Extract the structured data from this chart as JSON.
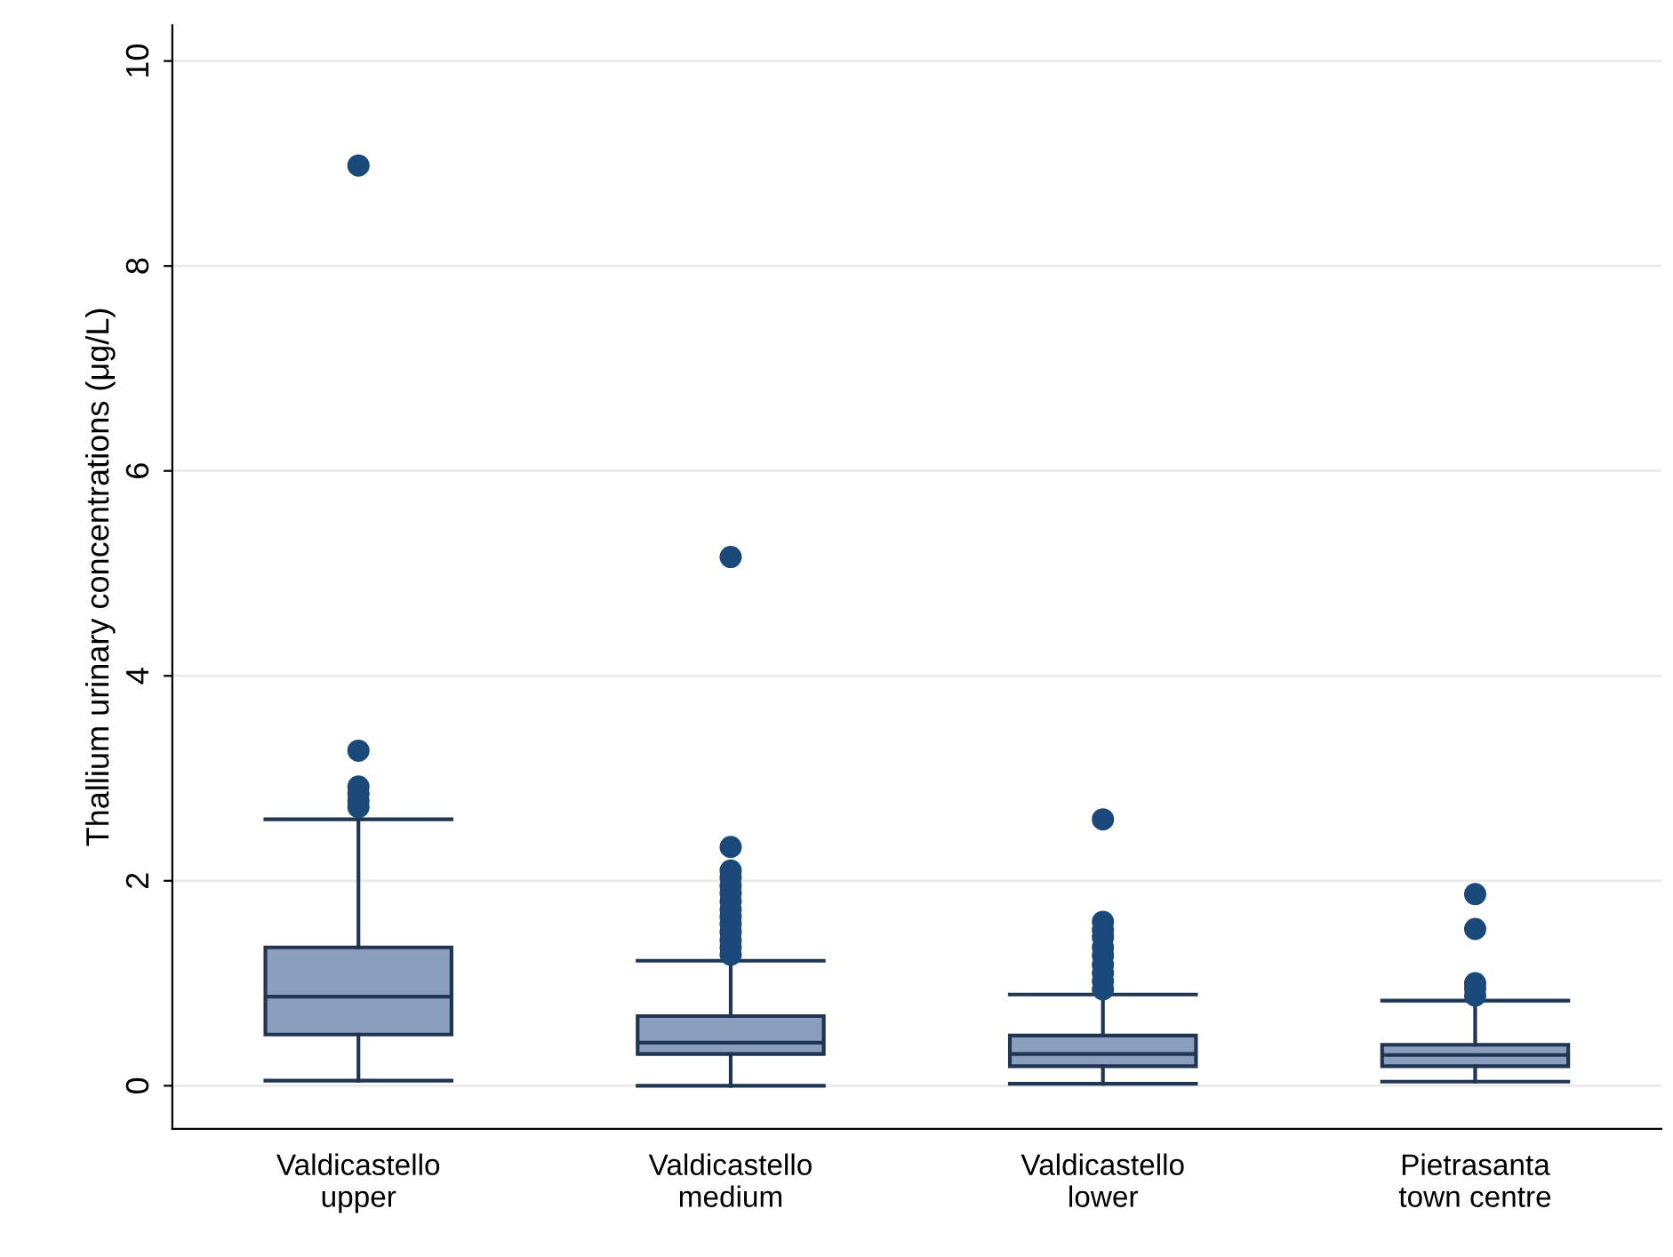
{
  "chart_data": {
    "type": "box",
    "ylabel": "Thallium urinary concentrations (μg/L)",
    "categories": [
      "Valdicastello\nupper",
      "Valdicastello\nmedium",
      "Valdicastello\nlower",
      "Pietrasanta\ntown centre"
    ],
    "boxes": [
      {
        "low": 0.05,
        "q1": 0.5,
        "median": 0.87,
        "q3": 1.35,
        "high": 2.6,
        "outliers": [
          2.72,
          2.78,
          2.85,
          2.92,
          3.27,
          8.98
        ]
      },
      {
        "low": 0.0,
        "q1": 0.31,
        "median": 0.42,
        "q3": 0.68,
        "high": 1.22,
        "outliers": [
          1.28,
          1.35,
          1.42,
          1.5,
          1.58,
          1.65,
          1.72,
          1.8,
          1.88,
          1.95,
          2.03,
          2.1,
          2.33,
          5.16
        ]
      },
      {
        "low": 0.02,
        "q1": 0.19,
        "median": 0.31,
        "q3": 0.49,
        "high": 0.89,
        "outliers": [
          0.94,
          1.02,
          1.1,
          1.18,
          1.27,
          1.35,
          1.45,
          1.52,
          1.6,
          2.6
        ]
      },
      {
        "low": 0.04,
        "q1": 0.19,
        "median": 0.3,
        "q3": 0.4,
        "high": 0.83,
        "outliers": [
          0.88,
          0.95,
          1.0,
          1.53,
          1.87
        ]
      }
    ],
    "color": "#8a9fbd",
    "ylim": [
      -0.42,
      10.35
    ],
    "yticks": [
      0,
      2,
      4,
      6,
      8,
      10
    ],
    "grid": "y"
  }
}
